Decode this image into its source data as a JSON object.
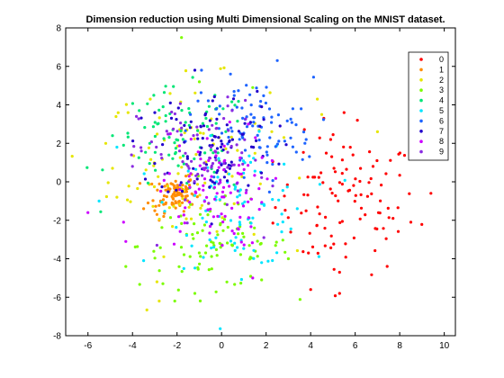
{
  "chart_data": {
    "type": "scatter",
    "title": "Dimension reduction using Multi Dimensional Scaling on the MNIST dataset.",
    "xlabel": "",
    "ylabel": "",
    "xlim": [
      -7,
      10.5
    ],
    "ylim": [
      -8,
      8
    ],
    "xticks": [
      -6,
      -4,
      -2,
      0,
      2,
      4,
      6,
      8,
      10
    ],
    "yticks": [
      -8,
      -6,
      -4,
      -2,
      0,
      2,
      4,
      6,
      8
    ],
    "grid": false,
    "legend_position": "top-right",
    "series": [
      {
        "name": "0",
        "color": "#ff0000",
        "cluster": {
          "center": [
            5.6,
            -1.2
          ],
          "spread": [
            1.6,
            1.8
          ],
          "count": 100
        },
        "points": [
          [
            9.4,
            -0.6
          ],
          [
            8.5,
            -2.1
          ],
          [
            7.7,
            -1.9
          ],
          [
            5.3,
            -5.8
          ],
          [
            4.0,
            -5.6
          ],
          [
            6.1,
            3.2
          ],
          [
            5.5,
            3.6
          ],
          [
            4.9,
            2.2
          ],
          [
            5.9,
            1.4
          ],
          [
            5.3,
            -4.7
          ],
          [
            6.8,
            0.8
          ],
          [
            3.9,
            -3.7
          ]
        ]
      },
      {
        "name": "1",
        "color": "#ff8c00",
        "cluster": {
          "center": [
            -2.1,
            -0.6
          ],
          "spread": [
            0.45,
            0.45
          ],
          "count": 90
        },
        "points": [
          [
            -2.8,
            -2.0
          ],
          [
            -2.6,
            -1.8
          ],
          [
            -3.3,
            -1.1
          ],
          [
            -1.6,
            0.3
          ],
          [
            -1.4,
            0.1
          ],
          [
            -3.0,
            -1.5
          ],
          [
            -3.5,
            -1.4
          ],
          [
            -2.9,
            -1.7
          ]
        ]
      },
      {
        "name": "2",
        "color": "#e6e600",
        "cluster": {
          "center": [
            -1.5,
            0.8
          ],
          "spread": [
            1.8,
            2.2
          ],
          "count": 90
        },
        "points": [
          [
            -5.2,
            2.0
          ],
          [
            -4.2,
            3.6
          ],
          [
            -3.2,
            4.3
          ],
          [
            -2.8,
            -6.2
          ],
          [
            -2.9,
            -5.2
          ],
          [
            4.5,
            3.5
          ],
          [
            4.3,
            4.3
          ],
          [
            7.0,
            2.6
          ],
          [
            2.8,
            2.3
          ],
          [
            -4.7,
            -0.8
          ],
          [
            -4.9,
            0.7
          ]
        ]
      },
      {
        "name": "3",
        "color": "#7cfc00",
        "cluster": {
          "center": [
            -0.3,
            -3.3
          ],
          "spread": [
            1.7,
            1.1
          ],
          "count": 90
        },
        "points": [
          [
            -1.8,
            7.5
          ],
          [
            -2.1,
            -6.2
          ],
          [
            -1.2,
            -5.8
          ],
          [
            1.8,
            -5.1
          ],
          [
            -4.3,
            -4.4
          ],
          [
            3.0,
            -4.0
          ],
          [
            1.4,
            4.9
          ],
          [
            -1.0,
            5.2
          ]
        ]
      },
      {
        "name": "4",
        "color": "#00e676",
        "cluster": {
          "center": [
            -1.8,
            2.0
          ],
          "spread": [
            1.6,
            1.4
          ],
          "count": 80
        },
        "points": [
          [
            -4.9,
            2.4
          ],
          [
            -4.4,
            1.9
          ],
          [
            -3.7,
            3.7
          ],
          [
            -0.3,
            4.5
          ],
          [
            -0.7,
            3.3
          ]
        ]
      },
      {
        "name": "5",
        "color": "#00e5ff",
        "cluster": {
          "center": [
            0.8,
            -1.2
          ],
          "spread": [
            1.5,
            1.6
          ],
          "count": 90
        },
        "points": [
          [
            -4.7,
            1.8
          ],
          [
            -5.5,
            -1.0
          ],
          [
            -3.5,
            -4.1
          ],
          [
            2.7,
            -2.6
          ],
          [
            3.4,
            -1.4
          ],
          [
            1.8,
            -4.2
          ]
        ]
      },
      {
        "name": "6",
        "color": "#1e64ff",
        "cluster": {
          "center": [
            1.3,
            2.6
          ],
          "spread": [
            1.4,
            1.4
          ],
          "count": 90
        },
        "points": [
          [
            2.5,
            6.3
          ],
          [
            -0.9,
            5.8
          ],
          [
            0.4,
            5.6
          ],
          [
            3.2,
            3.8
          ],
          [
            3.8,
            2.2
          ],
          [
            -1.4,
            3.5
          ]
        ]
      },
      {
        "name": "7",
        "color": "#2200cc",
        "cluster": {
          "center": [
            -0.2,
            1.8
          ],
          "spread": [
            1.3,
            1.4
          ],
          "count": 90
        },
        "points": [
          [
            -1.2,
            5.8
          ],
          [
            -3.0,
            3.6
          ],
          [
            -2.3,
            4.1
          ],
          [
            1.6,
            4.7
          ],
          [
            1.8,
            3.9
          ]
        ]
      },
      {
        "name": "8",
        "color": "#cc00ff",
        "cluster": {
          "center": [
            -0.4,
            -0.4
          ],
          "spread": [
            1.2,
            1.5
          ],
          "count": 95
        },
        "points": [
          [
            -6.0,
            -1.6
          ],
          [
            -4.3,
            -3.1
          ],
          [
            -4.4,
            -2.1
          ],
          [
            -2.3,
            2.5
          ],
          [
            1.4,
            -5.0
          ],
          [
            1.2,
            3.0
          ]
        ]
      },
      {
        "name": "9",
        "color": "#8a2be2",
        "cluster": {
          "center": [
            -0.9,
            1.2
          ],
          "spread": [
            1.4,
            1.5
          ],
          "count": 80
        },
        "points": [
          [
            -4.0,
            0.8
          ],
          [
            -3.6,
            1.6
          ],
          [
            1.9,
            -2.9
          ],
          [
            -2.9,
            -3.3
          ]
        ]
      }
    ]
  }
}
